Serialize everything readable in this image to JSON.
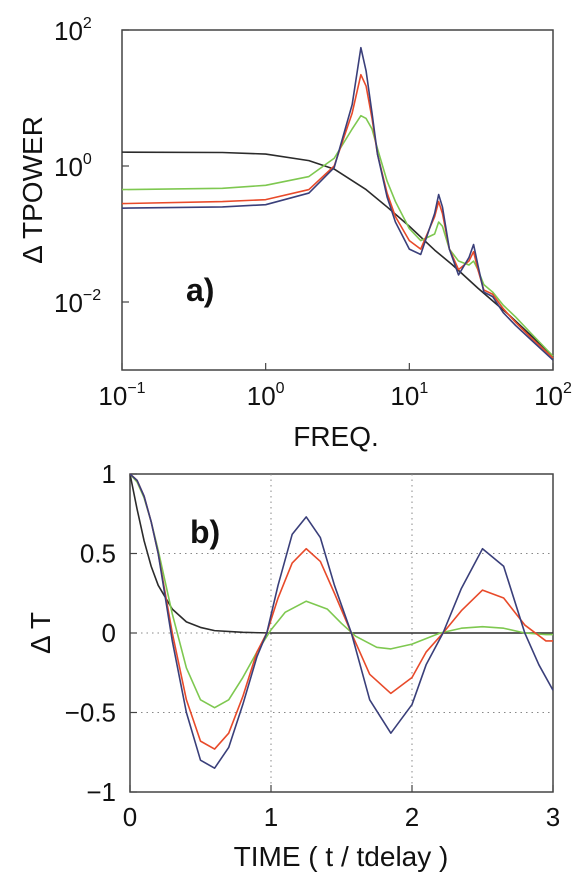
{
  "chart_data": [
    {
      "type": "line",
      "panel_label": "a)",
      "xlabel": "FREQ.",
      "ylabel": "Δ TPOWER",
      "xscale": "log",
      "yscale": "log",
      "xlim": [
        0.1,
        100
      ],
      "ylim": [
        0.001,
        100
      ],
      "x_ticks": [
        {
          "value": 0.1,
          "base": "10",
          "exp": "−1"
        },
        {
          "value": 1,
          "base": "10",
          "exp": "0"
        },
        {
          "value": 10,
          "base": "10",
          "exp": "1"
        },
        {
          "value": 100,
          "base": "10",
          "exp": "2"
        }
      ],
      "y_ticks": [
        {
          "value": 100,
          "base": "10",
          "exp": "2"
        },
        {
          "value": 1,
          "base": "10",
          "exp": "0"
        },
        {
          "value": 0.01,
          "base": "10",
          "exp": "−2"
        }
      ],
      "grid": false,
      "series": [
        {
          "color": "#2b2b2b",
          "x": [
            0.1,
            0.5,
            1,
            2,
            3,
            5,
            7,
            10,
            15,
            20,
            30,
            50,
            100
          ],
          "y": [
            1.6,
            1.58,
            1.5,
            1.2,
            0.9,
            0.45,
            0.25,
            0.13,
            0.058,
            0.035,
            0.016,
            0.0063,
            0.0016
          ]
        },
        {
          "color": "#7ec850",
          "x": [
            0.1,
            0.5,
            1,
            2,
            3,
            4,
            4.6,
            5,
            5.5,
            6,
            7,
            8,
            10,
            12,
            15,
            16,
            17,
            19,
            22,
            26,
            28,
            30,
            33,
            38,
            45,
            55,
            70,
            100
          ],
          "y": [
            0.45,
            0.47,
            0.52,
            0.7,
            1.3,
            3.5,
            5.5,
            5,
            3.5,
            1.8,
            0.6,
            0.3,
            0.12,
            0.08,
            0.1,
            0.15,
            0.13,
            0.06,
            0.04,
            0.035,
            0.04,
            0.03,
            0.018,
            0.014,
            0.009,
            0.006,
            0.0035,
            0.0016
          ]
        },
        {
          "color": "#e84a2a",
          "x": [
            0.1,
            0.5,
            1,
            2,
            3,
            4,
            4.6,
            5,
            5.5,
            6,
            7,
            8,
            10,
            12,
            15,
            16,
            17,
            19,
            22,
            26,
            28,
            30,
            33,
            38,
            45,
            55,
            70,
            100
          ],
          "y": [
            0.28,
            0.3,
            0.32,
            0.45,
            1.0,
            6,
            22,
            15,
            5,
            1.5,
            0.4,
            0.18,
            0.08,
            0.06,
            0.18,
            0.3,
            0.2,
            0.06,
            0.03,
            0.04,
            0.055,
            0.03,
            0.015,
            0.013,
            0.008,
            0.005,
            0.003,
            0.0015
          ]
        },
        {
          "color": "#3a3f7a",
          "x": [
            0.1,
            0.5,
            1,
            2,
            3,
            4,
            4.6,
            5,
            5.5,
            6,
            7,
            8,
            10,
            12,
            15,
            16,
            17,
            19,
            22,
            26,
            28,
            30,
            33,
            38,
            45,
            55,
            70,
            100
          ],
          "y": [
            0.24,
            0.25,
            0.27,
            0.4,
            0.95,
            8,
            55,
            25,
            6,
            1.5,
            0.35,
            0.15,
            0.06,
            0.05,
            0.2,
            0.38,
            0.25,
            0.06,
            0.025,
            0.045,
            0.07,
            0.035,
            0.014,
            0.012,
            0.007,
            0.0045,
            0.0028,
            0.0014
          ]
        }
      ]
    },
    {
      "type": "line",
      "panel_label": "b)",
      "xlabel": "TIME ( t / tdelay )",
      "ylabel": "Δ T",
      "xlim": [
        0,
        3
      ],
      "ylim": [
        -1,
        1
      ],
      "x_ticks": [
        {
          "value": 0,
          "label": "0"
        },
        {
          "value": 1,
          "label": "1"
        },
        {
          "value": 2,
          "label": "2"
        },
        {
          "value": 3,
          "label": "3"
        }
      ],
      "y_ticks": [
        {
          "value": 1,
          "label": "1"
        },
        {
          "value": 0.5,
          "label": "0.5"
        },
        {
          "value": 0,
          "label": "0"
        },
        {
          "value": -0.5,
          "label": "−0.5"
        },
        {
          "value": -1,
          "label": "−1"
        }
      ],
      "grid": true,
      "series": [
        {
          "color": "#2b2b2b",
          "x": [
            0,
            0.05,
            0.1,
            0.15,
            0.2,
            0.3,
            0.4,
            0.5,
            0.6,
            0.8,
            1,
            3
          ],
          "y": [
            1,
            0.78,
            0.58,
            0.42,
            0.3,
            0.15,
            0.07,
            0.035,
            0.015,
            0.004,
            0,
            0
          ]
        },
        {
          "color": "#7ec850",
          "x": [
            0,
            0.05,
            0.1,
            0.15,
            0.2,
            0.3,
            0.4,
            0.5,
            0.6,
            0.7,
            0.8,
            0.9,
            1,
            1.1,
            1.25,
            1.4,
            1.5,
            1.6,
            1.75,
            1.85,
            2.0,
            2.2,
            2.35,
            2.5,
            2.65,
            2.8,
            2.95,
            3
          ],
          "y": [
            1,
            0.95,
            0.85,
            0.7,
            0.52,
            0.12,
            -0.22,
            -0.42,
            -0.47,
            -0.42,
            -0.28,
            -0.12,
            0.02,
            0.13,
            0.2,
            0.15,
            0.06,
            -0.02,
            -0.09,
            -0.1,
            -0.07,
            0,
            0.03,
            0.04,
            0.03,
            0,
            -0.01,
            -0.01
          ]
        },
        {
          "color": "#e84a2a",
          "x": [
            0,
            0.05,
            0.1,
            0.15,
            0.2,
            0.3,
            0.4,
            0.5,
            0.6,
            0.7,
            0.8,
            0.9,
            0.97,
            1.05,
            1.15,
            1.25,
            1.35,
            1.45,
            1.57,
            1.7,
            1.85,
            2.0,
            2.1,
            2.22,
            2.35,
            2.5,
            2.65,
            2.8,
            2.95,
            3
          ],
          "y": [
            1,
            0.96,
            0.86,
            0.7,
            0.5,
            0.0,
            -0.42,
            -0.68,
            -0.73,
            -0.63,
            -0.4,
            -0.12,
            0.0,
            0.22,
            0.44,
            0.53,
            0.45,
            0.25,
            0.0,
            -0.26,
            -0.38,
            -0.28,
            -0.12,
            0.0,
            0.14,
            0.27,
            0.22,
            0.05,
            -0.05,
            -0.05
          ]
        },
        {
          "color": "#3a3f7a",
          "x": [
            0,
            0.05,
            0.1,
            0.15,
            0.2,
            0.3,
            0.4,
            0.5,
            0.6,
            0.7,
            0.8,
            0.9,
            0.97,
            1.05,
            1.15,
            1.25,
            1.35,
            1.45,
            1.57,
            1.7,
            1.85,
            2.0,
            2.1,
            2.22,
            2.35,
            2.5,
            2.65,
            2.8,
            2.9,
            3
          ],
          "y": [
            1,
            0.96,
            0.86,
            0.7,
            0.5,
            -0.05,
            -0.5,
            -0.8,
            -0.85,
            -0.72,
            -0.45,
            -0.15,
            0.0,
            0.3,
            0.62,
            0.73,
            0.6,
            0.3,
            0.0,
            -0.42,
            -0.63,
            -0.45,
            -0.2,
            0.0,
            0.28,
            0.53,
            0.42,
            0.0,
            -0.2,
            -0.36
          ]
        }
      ]
    }
  ]
}
